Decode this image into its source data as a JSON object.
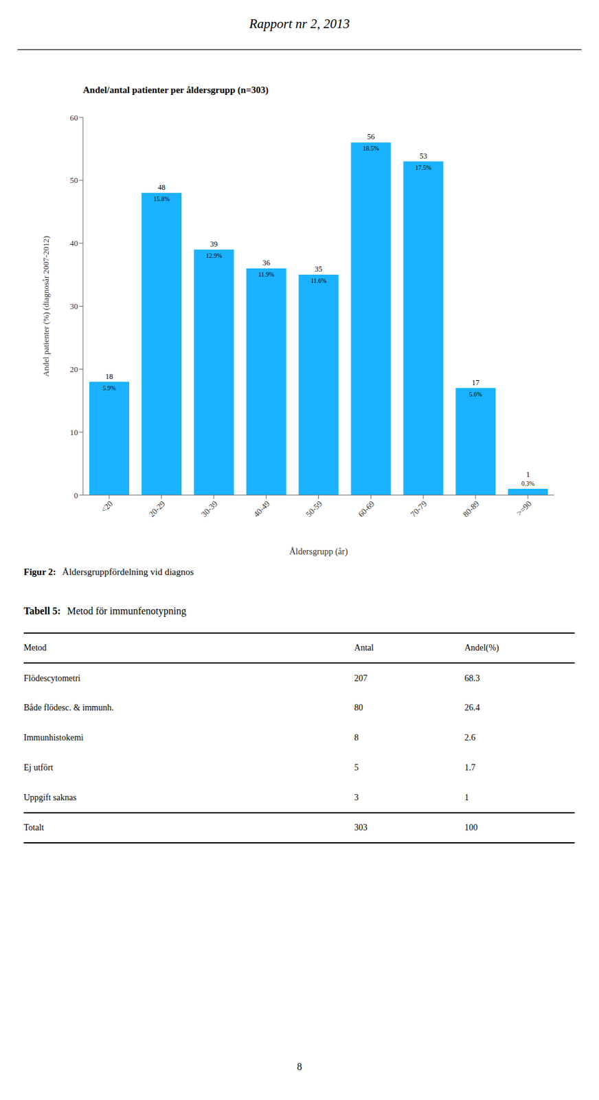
{
  "chart_data": [
    {
      "type": "bar",
      "header": "Rapport nr 2, 2013",
      "title": "Andel/antal patienter per åldersgrupp (n=303)",
      "xlabel": "Åldersgrupp (år)",
      "ylabel": "Andel patienter (%) (diagnosår 2007-2012)",
      "categories": [
        "<20",
        "20-29",
        "30-39",
        "40-49",
        "50-59",
        "60-69",
        "70-79",
        "80-89",
        ">=90"
      ],
      "values": [
        18,
        48,
        39,
        36,
        35,
        56,
        53,
        17,
        1
      ],
      "percentages": [
        "5.9%",
        "15.8%",
        "12.9%",
        "11.9%",
        "11.6%",
        "18.5%",
        "17.5%",
        "5.6%",
        "0.3%"
      ],
      "data_labels": true,
      "color": "#1ab2ff",
      "ylim": [
        0,
        60
      ],
      "yticks": [
        0,
        10,
        20,
        30,
        40,
        50,
        60
      ],
      "grid": false,
      "caption": [
        "Figur 2:",
        "Åldersgruppfördelning vid diagnos"
      ],
      "page_number": "8"
    },
    {
      "type": "table",
      "title": [
        "Tabell 5:",
        "Metod för immunfenotypning"
      ],
      "xlabel": "Metod",
      "categories": [
        "Flödescytometri",
        "Både flödesc. & immunh.",
        "Immunhistokemi",
        "Ej utfört",
        "Uppgift saknas",
        "Totalt"
      ],
      "series": [
        {
          "name": "Antal",
          "values": [
            207,
            80,
            8,
            5,
            3,
            303
          ]
        },
        {
          "name": "Andel(%)",
          "values": [
            68.3,
            26.4,
            2.6,
            1.7,
            1,
            100
          ]
        }
      ]
    }
  ]
}
